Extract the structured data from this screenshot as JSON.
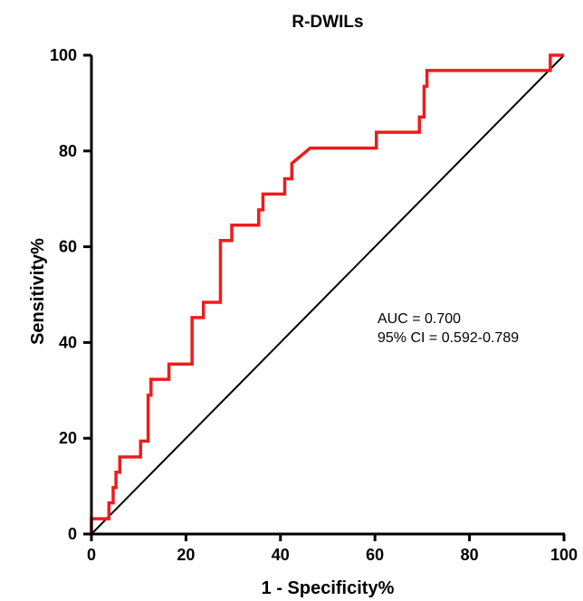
{
  "chart_data": {
    "type": "line",
    "title": "R-DWILs",
    "xlabel": "1 - Specificity%",
    "ylabel": "Sensitivity%",
    "xlim": [
      0,
      100
    ],
    "ylim": [
      0,
      100
    ],
    "xticks": [
      0,
      20,
      40,
      60,
      80,
      100
    ],
    "yticks": [
      0,
      20,
      40,
      60,
      80,
      100
    ],
    "grid": false,
    "series": [
      {
        "color": "#ee1c1c",
        "x": [
          0,
          0,
          3.7,
          3.7,
          4.6,
          4.6,
          5.2,
          5.2,
          6.0,
          6.0,
          10.4,
          10.4,
          12.0,
          12.0,
          12.6,
          12.6,
          16.4,
          16.4,
          21.3,
          21.3,
          23.7,
          23.7,
          27.3,
          27.3,
          29.7,
          29.7,
          35.4,
          35.4,
          36.3,
          36.3,
          40.9,
          40.9,
          42.4,
          42.4,
          46.3,
          46.3,
          60.3,
          60.3,
          69.4,
          69.4,
          70.4,
          70.4,
          71.0,
          71.0,
          97.1,
          97.1,
          100
        ],
        "y": [
          0,
          3.2,
          3.2,
          6.5,
          6.5,
          9.7,
          9.7,
          12.9,
          12.9,
          16.1,
          16.1,
          19.4,
          19.4,
          29.0,
          29.0,
          32.3,
          32.3,
          35.5,
          35.5,
          45.2,
          45.2,
          48.4,
          48.4,
          61.3,
          61.3,
          64.5,
          64.5,
          67.7,
          67.7,
          71.0,
          71.0,
          74.2,
          74.2,
          77.4,
          80.6,
          80.6,
          80.6,
          83.9,
          83.9,
          87.1,
          87.1,
          93.5,
          93.5,
          96.8,
          96.8,
          100,
          100
        ]
      },
      {
        "color": "#000000",
        "x": [
          0,
          100
        ],
        "y": [
          0,
          100
        ]
      }
    ],
    "annotations": [
      "AUC = 0.700",
      "95% CI = 0.592-0.789"
    ]
  },
  "colors": {
    "roc": "#ee1c1c",
    "reference": "#000000",
    "axis": "#000000"
  }
}
